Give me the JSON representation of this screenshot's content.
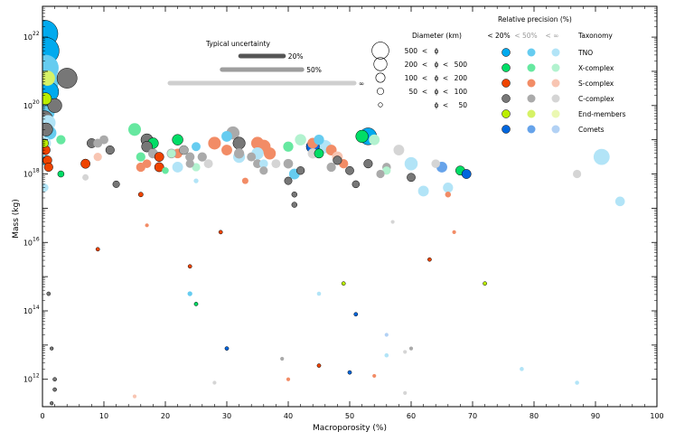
{
  "chart_data": {
    "type": "scatter",
    "title": "",
    "xlabel": "Macroporosity (%)",
    "ylabel": "Mass (kg)",
    "xlim": [
      0,
      100
    ],
    "ylim_log10": [
      11.2,
      22.9
    ],
    "x_ticks": [
      "0",
      "10",
      "20",
      "30",
      "40",
      "50",
      "60",
      "70",
      "80",
      "90",
      "100"
    ],
    "y_ticks": [
      {
        "exp": 12,
        "label": "12"
      },
      {
        "exp": 14,
        "label": "14"
      },
      {
        "exp": 16,
        "label": "16"
      },
      {
        "exp": 18,
        "label": "18"
      },
      {
        "exp": 20,
        "label": "20"
      },
      {
        "exp": 22,
        "label": "22"
      }
    ],
    "y_tick_base": "10",
    "uncertainty": {
      "title": "Typical uncertainty",
      "levels": [
        {
          "label": "20%",
          "color": "#555555",
          "halfwidth": 3.5
        },
        {
          "label": "50%",
          "color": "#9e9e9e",
          "halfwidth": 6.5
        },
        {
          "label": "∞",
          "color": "#cfcfcf",
          "halfwidth": 15
        }
      ]
    },
    "size_legend": {
      "title": "Diameter (km)",
      "rows": [
        {
          "lo": "500",
          "op1": "<",
          "sym": "ϕ",
          "op2": "",
          "hi": "",
          "diam": 500
        },
        {
          "lo": "200",
          "op1": "<",
          "sym": "ϕ",
          "op2": "<",
          "hi": "500",
          "diam": 300
        },
        {
          "lo": "100",
          "op1": "<",
          "sym": "ϕ",
          "op2": "<",
          "hi": "200",
          "diam": 150
        },
        {
          "lo": "50",
          "op1": "<",
          "sym": "ϕ",
          "op2": "<",
          "hi": "100",
          "diam": 75
        },
        {
          "lo": "",
          "op1": "",
          "sym": "ϕ",
          "op2": "<",
          "hi": "50",
          "diam": 30
        }
      ]
    },
    "class_legend": {
      "title": "Relative precision (%)",
      "precision_labels": [
        "< 20%",
        "< 50%",
        "< ∞"
      ],
      "taxonomy_title": "Taxonomy",
      "classes": [
        {
          "name": "TNO",
          "colors": [
            "#00aaee",
            "#66ccf0",
            "#b2e4f7"
          ]
        },
        {
          "name": "X-complex",
          "colors": [
            "#00dd66",
            "#66e8a0",
            "#b2f2cf"
          ]
        },
        {
          "name": "S-complex",
          "colors": [
            "#ee4400",
            "#f28c66",
            "#f8c5b2"
          ]
        },
        {
          "name": "C-complex",
          "colors": [
            "#777777",
            "#aaaaaa",
            "#d5d5d5"
          ]
        },
        {
          "name": "End-members",
          "colors": [
            "#bbee00",
            "#d6f266",
            "#ebf8b2"
          ]
        },
        {
          "name": "Comets",
          "colors": [
            "#0066dd",
            "#66a3ea",
            "#b2d1f4"
          ]
        }
      ]
    },
    "series": [
      {
        "name": "TNO",
        "points": [
          [
            0.3,
            22.1,
            2200,
            0
          ],
          [
            0.5,
            21.6,
            1500,
            0
          ],
          [
            0.5,
            21.1,
            1200,
            1
          ],
          [
            0.8,
            20.7,
            900,
            1
          ],
          [
            1.0,
            20.4,
            700,
            0
          ],
          [
            0.6,
            19.8,
            500,
            1
          ],
          [
            0.9,
            19.5,
            400,
            2
          ],
          [
            1.2,
            19.2,
            300,
            1
          ],
          [
            0.4,
            18.9,
            250,
            2
          ],
          [
            0.5,
            18.4,
            200,
            1
          ],
          [
            0.3,
            17.6,
            120,
            2
          ],
          [
            60,
            18.3,
            300,
            2
          ],
          [
            62,
            17.5,
            200,
            2
          ],
          [
            66,
            17.6,
            180,
            2
          ],
          [
            91,
            18.5,
            450,
            2
          ],
          [
            94,
            17.2,
            160,
            2
          ],
          [
            46,
            18.8,
            300,
            2
          ],
          [
            35,
            18.6,
            260,
            2
          ],
          [
            22,
            18.2,
            200,
            2
          ],
          [
            32,
            18.5,
            250,
            2
          ],
          [
            41,
            18.0,
            200,
            1
          ],
          [
            45,
            19.0,
            180,
            1
          ],
          [
            53,
            19.1,
            500,
            0
          ],
          [
            24,
            14.5,
            40,
            1
          ],
          [
            45,
            14.5,
            30,
            2
          ],
          [
            25,
            18.8,
            140,
            1
          ],
          [
            25,
            17.8,
            40,
            2
          ],
          [
            56,
            12.7,
            30,
            2
          ],
          [
            78,
            12.3,
            30,
            2
          ],
          [
            87,
            11.9,
            30,
            2
          ],
          [
            36,
            18.3,
            130,
            2
          ],
          [
            30,
            19.1,
            200,
            1
          ]
        ]
      },
      {
        "name": "X-complex",
        "points": [
          [
            15,
            19.3,
            280,
            1
          ],
          [
            16,
            18.5,
            150,
            1
          ],
          [
            18,
            18.9,
            200,
            0
          ],
          [
            22,
            19.0,
            200,
            0
          ],
          [
            23,
            18.7,
            140,
            0
          ],
          [
            25,
            18.2,
            120,
            2
          ],
          [
            40,
            18.8,
            180,
            1
          ],
          [
            42,
            19.0,
            220,
            2
          ],
          [
            45,
            18.6,
            150,
            0
          ],
          [
            52,
            19.1,
            270,
            0
          ],
          [
            54,
            19.0,
            200,
            2
          ],
          [
            56,
            18.1,
            120,
            2
          ],
          [
            68,
            18.1,
            150,
            0
          ],
          [
            3,
            19.0,
            150,
            1
          ],
          [
            3,
            18.0,
            70,
            0
          ],
          [
            25,
            14.2,
            25,
            0
          ],
          [
            20,
            18.1,
            80,
            1
          ],
          [
            21,
            18.6,
            120,
            2
          ]
        ]
      },
      {
        "name": "S-complex",
        "points": [
          [
            0.5,
            18.7,
            150,
            0
          ],
          [
            0.8,
            18.4,
            140,
            0
          ],
          [
            1.0,
            18.2,
            130,
            0
          ],
          [
            7,
            18.3,
            150,
            0
          ],
          [
            9,
            18.5,
            120,
            2
          ],
          [
            16,
            18.2,
            150,
            1
          ],
          [
            17,
            18.3,
            130,
            1
          ],
          [
            19,
            18.5,
            150,
            0
          ],
          [
            19,
            18.2,
            150,
            0
          ],
          [
            22,
            18.6,
            160,
            1
          ],
          [
            28,
            18.9,
            280,
            1
          ],
          [
            30,
            18.7,
            200,
            1
          ],
          [
            35,
            18.9,
            280,
            1
          ],
          [
            36,
            18.8,
            330,
            1
          ],
          [
            37,
            18.6,
            250,
            1
          ],
          [
            44,
            18.9,
            200,
            1
          ],
          [
            47,
            18.7,
            200,
            1
          ],
          [
            48,
            18.5,
            200,
            2
          ],
          [
            49,
            18.3,
            150,
            1
          ],
          [
            66,
            17.4,
            60,
            1
          ],
          [
            16,
            17.4,
            40,
            0
          ],
          [
            17,
            16.5,
            25,
            1
          ],
          [
            29,
            16.3,
            25,
            0
          ],
          [
            9,
            15.8,
            25,
            0
          ],
          [
            24,
            15.3,
            25,
            0
          ],
          [
            63,
            15.5,
            25,
            0
          ],
          [
            67,
            16.3,
            25,
            1
          ],
          [
            45,
            12.4,
            25,
            0
          ],
          [
            54,
            12.1,
            25,
            1
          ],
          [
            40,
            12.0,
            25,
            1
          ],
          [
            15,
            11.5,
            25,
            2
          ],
          [
            33,
            17.8,
            70,
            1
          ]
        ]
      },
      {
        "name": "C-complex",
        "points": [
          [
            0.3,
            19.6,
            500,
            0
          ],
          [
            0.6,
            19.3,
            300,
            0
          ],
          [
            2,
            20.0,
            350,
            0
          ],
          [
            4,
            20.8,
            700,
            0
          ],
          [
            8,
            18.9,
            150,
            0
          ],
          [
            9,
            18.9,
            140,
            1
          ],
          [
            10,
            19.0,
            140,
            1
          ],
          [
            11,
            18.7,
            130,
            0
          ],
          [
            17,
            19.0,
            250,
            0
          ],
          [
            17,
            18.8,
            200,
            0
          ],
          [
            18,
            18.6,
            170,
            1
          ],
          [
            21,
            18.6,
            160,
            1
          ],
          [
            23,
            18.7,
            140,
            1
          ],
          [
            24,
            18.5,
            150,
            1
          ],
          [
            24,
            18.3,
            120,
            1
          ],
          [
            26,
            18.5,
            150,
            1
          ],
          [
            27,
            18.3,
            140,
            2
          ],
          [
            31,
            19.2,
            300,
            1
          ],
          [
            32,
            18.9,
            260,
            0
          ],
          [
            32,
            18.6,
            180,
            1
          ],
          [
            34,
            18.5,
            140,
            1
          ],
          [
            35,
            18.3,
            140,
            1
          ],
          [
            36,
            18.1,
            120,
            1
          ],
          [
            38,
            18.3,
            140,
            2
          ],
          [
            40,
            18.3,
            160,
            1
          ],
          [
            40,
            17.8,
            100,
            0
          ],
          [
            42,
            18.1,
            110,
            0
          ],
          [
            44,
            18.6,
            180,
            2
          ],
          [
            47,
            18.2,
            150,
            1
          ],
          [
            48,
            18.4,
            130,
            0
          ],
          [
            50,
            18.1,
            120,
            0
          ],
          [
            51,
            17.7,
            90,
            0
          ],
          [
            53,
            18.3,
            130,
            0
          ],
          [
            55,
            18.0,
            120,
            1
          ],
          [
            56,
            18.2,
            130,
            1
          ],
          [
            58,
            18.7,
            200,
            2
          ],
          [
            60,
            17.9,
            120,
            0
          ],
          [
            64,
            18.3,
            130,
            2
          ],
          [
            87,
            18.0,
            120,
            2
          ],
          [
            12,
            17.7,
            80,
            0
          ],
          [
            7,
            17.9,
            70,
            2
          ],
          [
            41,
            17.4,
            50,
            0
          ],
          [
            41,
            17.1,
            50,
            0
          ],
          [
            57,
            16.6,
            25,
            2
          ],
          [
            60,
            12.9,
            25,
            1
          ],
          [
            59,
            12.8,
            25,
            2
          ],
          [
            39,
            12.6,
            25,
            1
          ],
          [
            28,
            11.9,
            25,
            2
          ],
          [
            59,
            11.6,
            25,
            2
          ],
          [
            1,
            14.5,
            25,
            0
          ],
          [
            1.5,
            12.9,
            20,
            0
          ],
          [
            2,
            12.0,
            25,
            0
          ],
          [
            2,
            11.7,
            25,
            0
          ],
          [
            1.5,
            11.3,
            20,
            0
          ]
        ]
      },
      {
        "name": "End-members",
        "points": [
          [
            0.5,
            20.2,
            250,
            0
          ],
          [
            0.8,
            20.8,
            400,
            1
          ],
          [
            0.3,
            18.9,
            120,
            0
          ],
          [
            49,
            14.8,
            25,
            0
          ],
          [
            72,
            14.8,
            25,
            0
          ]
        ]
      },
      {
        "name": "Comets",
        "points": [
          [
            44,
            18.8,
            300,
            0
          ],
          [
            65,
            18.2,
            200,
            1
          ],
          [
            69,
            18.0,
            150,
            0
          ],
          [
            30,
            12.9,
            25,
            0
          ],
          [
            50,
            12.2,
            25,
            0
          ],
          [
            51,
            13.9,
            25,
            0
          ],
          [
            56,
            13.3,
            25,
            2
          ]
        ]
      }
    ]
  }
}
